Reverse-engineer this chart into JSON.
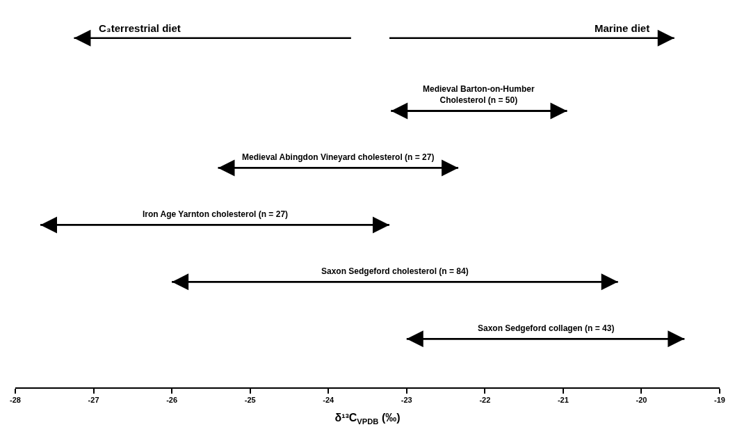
{
  "chart_data": [
    {
      "type": "bar",
      "orientation": "horizontal",
      "categories": [
        null
      ],
      "series": [
        {
          "name": "C₃terrestrial diet",
          "color": "#000000",
          "base": [
            -23.71
          ],
          "values": [
            -3.54
          ]
        },
        {
          "name": "Marine diet",
          "color": "#000000",
          "base": [
            -23.22
          ],
          "values": [
            3.64
          ]
        }
      ],
      "xlim": [
        -28,
        -19
      ],
      "tick_labels": false,
      "legend": false
    },
    {
      "type": "bar",
      "orientation": "horizontal",
      "xlabel": "δ¹³C$_{VPDB}$ (‰)",
      "categories": [
        null,
        null,
        null,
        null,
        null
      ],
      "series": [
        {
          "color": "#000000",
          "base": [
            -23.2,
            -25.41,
            -27.68,
            -26.0,
            -23.0
          ],
          "values": [
            2.25,
            3.07,
            4.46,
            5.7,
            3.55
          ]
        }
      ],
      "annotations": [
        "Medieval Barton-on-Humber\nCholesterol (n = 50)",
        "Medieval Abingdon Vineyard cholesterol (n = 27)",
        "Iron Age Yarnton cholesterol (n = 27)",
        "Saxon Sedgeford cholesterol (n = 84)",
        "Saxon Sedgeford collagen (n = 43)"
      ],
      "xlim": [
        -28,
        -19
      ],
      "xticks": [
        -28,
        -27,
        -26,
        -25,
        -24,
        -23,
        -22,
        -21,
        -20,
        -19
      ],
      "legend": false
    }
  ]
}
